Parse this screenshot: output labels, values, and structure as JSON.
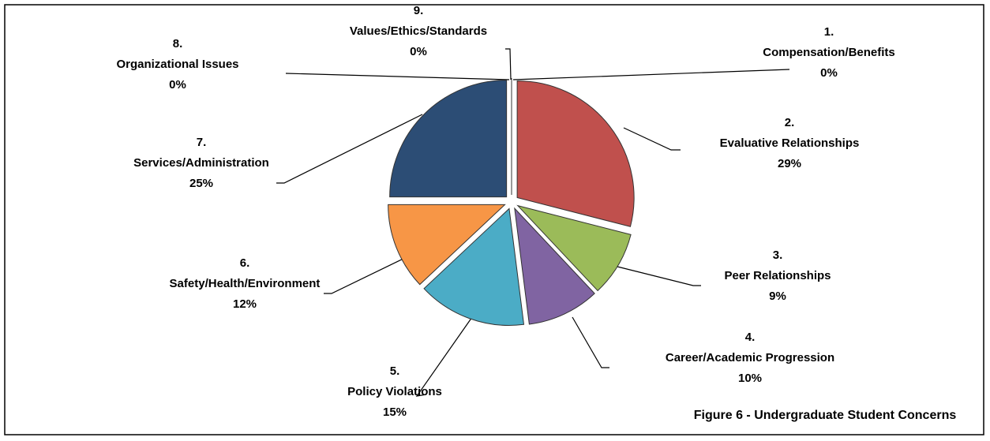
{
  "chart_data": {
    "type": "pie",
    "title": "Figure 6 - Undergraduate Student Concerns",
    "categories": [
      "1. Compensation/Benefits",
      "2. Evaluative Relationships",
      "3. Peer Relationships",
      "4. Career/Academic Progression",
      "5. Policy Violations",
      "6. Safety/Health/Environment",
      "7. Services/Administration",
      "8. Organizational Issues",
      "9. Values/Ethics/Standards"
    ],
    "values": [
      0,
      29,
      9,
      10,
      15,
      12,
      25,
      0,
      0
    ],
    "value_labels": [
      "0%",
      "29%",
      "9%",
      "10%",
      "15%",
      "12%",
      "25%",
      "0%",
      "0%"
    ],
    "colors": [
      "#4f81bd",
      "#c0504d",
      "#9bbb59",
      "#8064a2",
      "#4bacc6",
      "#f79646",
      "#2c4d75",
      "#772c2a",
      "#5f7530"
    ]
  }
}
